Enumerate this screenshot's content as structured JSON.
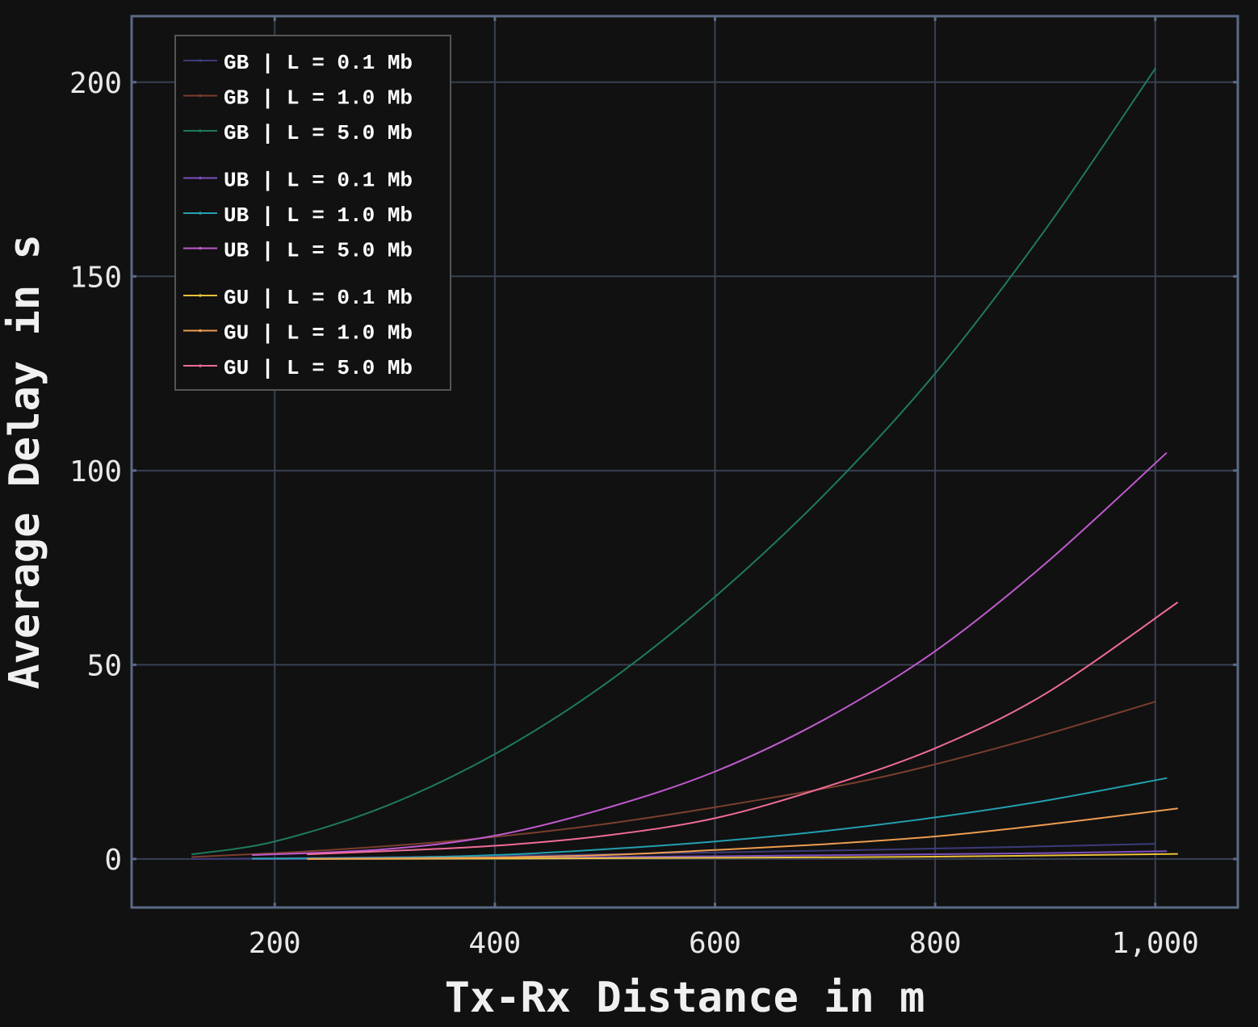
{
  "chart_data": {
    "type": "line",
    "title": "",
    "xlabel": "Tx-Rx Distance in m",
    "ylabel": "Average Delay in s",
    "xlim": [
      70,
      1075
    ],
    "ylim": [
      -12.5,
      217
    ],
    "xticks": [
      200,
      400,
      600,
      800,
      1000
    ],
    "xtick_labels": [
      "200",
      "400",
      "600",
      "800",
      "1,000"
    ],
    "yticks": [
      0,
      50,
      100,
      150,
      200
    ],
    "ytick_labels": [
      "0",
      "50",
      "100",
      "150",
      "200"
    ],
    "grid": true,
    "legend_position": "top-left",
    "legend_groups": [
      3,
      3,
      3
    ],
    "series": [
      {
        "name": "GB | L = 0.1 Mb",
        "color": "#3d3b7a",
        "x": [
          125,
          250,
          375,
          500,
          625,
          750,
          875,
          1000
        ],
        "y": [
          0,
          0.3,
          0.7,
          1.2,
          1.8,
          2.4,
          3.1,
          3.9
        ]
      },
      {
        "name": "GB | L = 1.0 Mb",
        "color": "#7a3e2e",
        "x": [
          125,
          250,
          375,
          500,
          625,
          750,
          875,
          1000
        ],
        "y": [
          0.5,
          2.3,
          5.0,
          9.0,
          14.5,
          21.0,
          30.0,
          40.5
        ]
      },
      {
        "name": "GB | L = 5.0 Mb",
        "color": "#1f7a5c",
        "x": [
          125,
          200,
          300,
          400,
          500,
          600,
          700,
          800,
          900,
          1000
        ],
        "y": [
          1.2,
          4.5,
          13.5,
          27.0,
          45.0,
          67.5,
          94.0,
          125.0,
          162.0,
          203.5
        ]
      },
      {
        "name": "UB | L = 0.1 Mb",
        "color": "#7e4fc0",
        "x": [
          180,
          300,
          450,
          600,
          750,
          900,
          1010
        ],
        "y": [
          0,
          0.2,
          0.4,
          0.7,
          1.1,
          1.5,
          2.0
        ]
      },
      {
        "name": "UB | L = 1.0 Mb",
        "color": "#23a0b0",
        "x": [
          180,
          300,
          400,
          500,
          600,
          700,
          800,
          900,
          1010
        ],
        "y": [
          0.1,
          0.3,
          1.0,
          2.5,
          4.5,
          7.2,
          10.7,
          15.0,
          20.8
        ]
      },
      {
        "name": "UB | L = 5.0 Mb",
        "color": "#c15ad0",
        "x": [
          180,
          300,
          400,
          500,
          600,
          700,
          800,
          900,
          1010
        ],
        "y": [
          1.0,
          2.5,
          6.0,
          13.0,
          22.5,
          36.0,
          53.5,
          76.0,
          104.5
        ]
      },
      {
        "name": "GU | L = 0.1 Mb",
        "color": "#ecc13a",
        "x": [
          230,
          400,
          600,
          800,
          1020
        ],
        "y": [
          0,
          0.1,
          0.3,
          0.6,
          1.3
        ]
      },
      {
        "name": "GU | L = 1.0 Mb",
        "color": "#ee9d50",
        "x": [
          230,
          400,
          500,
          600,
          700,
          800,
          900,
          1020
        ],
        "y": [
          0,
          0.4,
          1.0,
          2.3,
          3.8,
          5.8,
          8.8,
          13.0
        ]
      },
      {
        "name": "GU | L = 5.0 Mb",
        "color": "#f06c98",
        "x": [
          230,
          300,
          400,
          500,
          600,
          700,
          800,
          900,
          1020
        ],
        "y": [
          1.2,
          2.0,
          3.4,
          6.0,
          10.5,
          18.5,
          28.5,
          42.5,
          66.0
        ]
      }
    ]
  },
  "colors": {
    "background": "#111111",
    "frame": "#5a6a85",
    "grid": "#384153",
    "legend_border": "#555555"
  }
}
